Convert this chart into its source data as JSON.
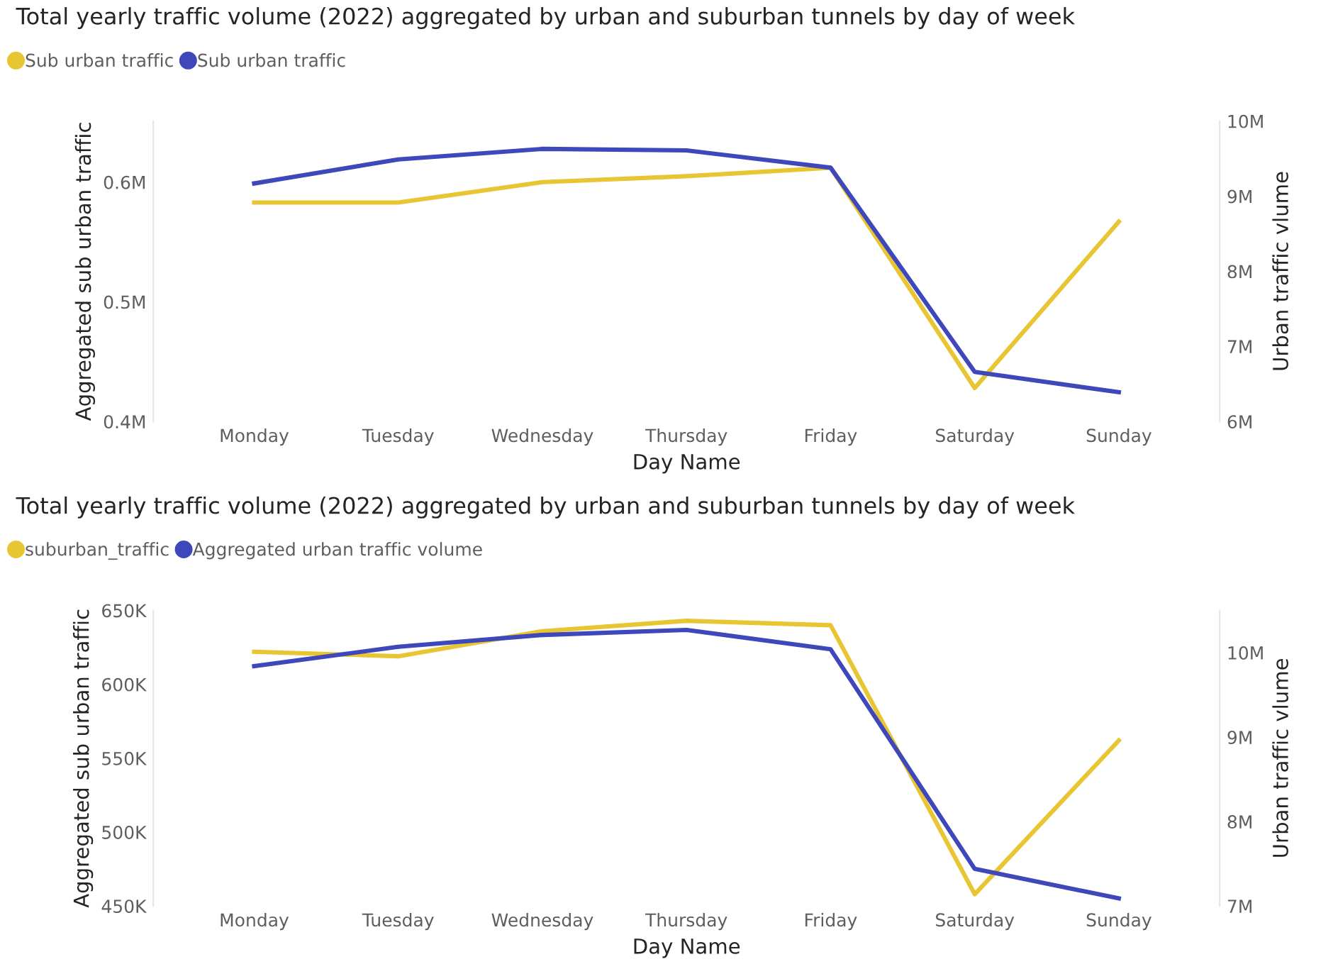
{
  "chart_data": [
    {
      "type": "line",
      "title": "Total yearly traffic volume (2022) aggregated by urban and suburban tunnels by day of week",
      "xlabel": "Day Name",
      "ylabel": "Aggregated sub urban traffic",
      "y2label": "Urban traffic vlume",
      "categories": [
        "Monday",
        "Tuesday",
        "Wednesday",
        "Thursday",
        "Friday",
        "Saturday",
        "Sunday"
      ],
      "series": [
        {
          "name": "Sub urban traffic",
          "color": "#e8c533",
          "values": [
            583000,
            583000,
            600000,
            605000,
            612000,
            428000,
            567000
          ]
        },
        {
          "name": "Sub urban traffic",
          "color": "#3f48bb",
          "axis": "y2",
          "values": [
            9170000,
            9490000,
            9630000,
            9610000,
            9380000,
            6660000,
            6390000
          ]
        }
      ],
      "ylim": [
        400000,
        651000
      ],
      "yticks": [
        {
          "value": 400000,
          "label": "0.4M"
        },
        {
          "value": 500000,
          "label": "0.5M"
        },
        {
          "value": 600000,
          "label": "0.6M"
        }
      ],
      "y2lim": [
        6000000,
        10000000
      ],
      "y2ticks": [
        {
          "value": 6000000,
          "label": "6M"
        },
        {
          "value": 7000000,
          "label": "7M"
        },
        {
          "value": 8000000,
          "label": "8M"
        },
        {
          "value": 9000000,
          "label": "9M"
        },
        {
          "value": 10000000,
          "label": "10M"
        }
      ],
      "grid": false,
      "legend": "top left"
    },
    {
      "type": "line",
      "title": "Total yearly traffic volume (2022) aggregated by urban and suburban tunnels by day of week",
      "xlabel": "Day Name",
      "ylabel": "Aggregated sub urban traffic",
      "y2label": "Urban traffic vlume",
      "categories": [
        "Monday",
        "Tuesday",
        "Wednesday",
        "Thursday",
        "Friday",
        "Saturday",
        "Sunday"
      ],
      "series": [
        {
          "name": "suburban_traffic",
          "color": "#e8c533",
          "values": [
            622000,
            619000,
            636000,
            643000,
            640000,
            458000,
            562000
          ]
        },
        {
          "name": "Aggregated urban traffic volume",
          "color": "#3f48bb",
          "axis": "y2",
          "values": [
            9840000,
            10070000,
            10210000,
            10270000,
            10040000,
            7440000,
            7090000
          ]
        }
      ],
      "ylim": [
        450000,
        650000
      ],
      "yticks": [
        {
          "value": 450000,
          "label": "450K"
        },
        {
          "value": 500000,
          "label": "500K"
        },
        {
          "value": 550000,
          "label": "550K"
        },
        {
          "value": 600000,
          "label": "600K"
        },
        {
          "value": 650000,
          "label": "650K"
        }
      ],
      "y2lim": [
        7000000,
        10500000
      ],
      "y2ticks": [
        {
          "value": 7000000,
          "label": "7M"
        },
        {
          "value": 8000000,
          "label": "8M"
        },
        {
          "value": 9000000,
          "label": "9M"
        },
        {
          "value": 10000000,
          "label": "10M"
        }
      ],
      "grid": false,
      "legend": "top left"
    }
  ]
}
